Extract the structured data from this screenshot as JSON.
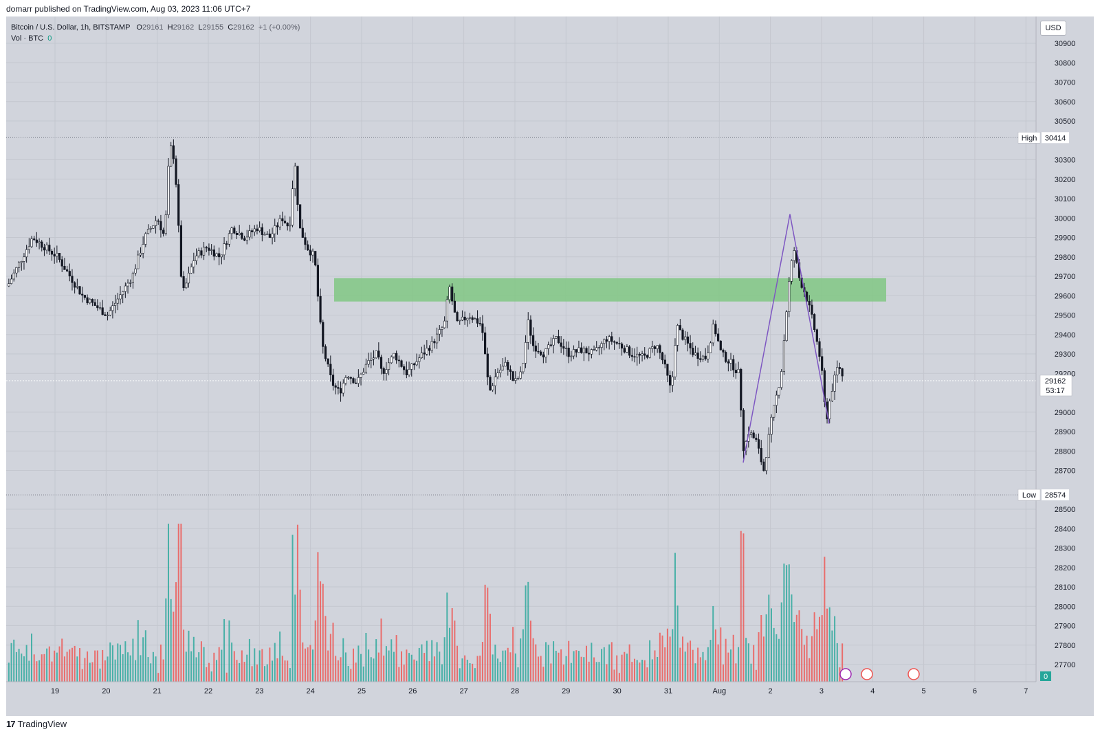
{
  "header": {
    "published_by": "domarr published on TradingView.com, Aug 03, 2023 11:06 UTC+7"
  },
  "legend": {
    "symbol": "Bitcoin / U.S. Dollar, 1h, BITSTAMP",
    "o_label": "O",
    "o_value": "29161",
    "h_label": "H",
    "h_value": "29162",
    "l_label": "L",
    "l_value": "29155",
    "c_label": "C",
    "c_value": "29162",
    "change": "+1 (+0.00%)",
    "vol_label": "Vol · BTC",
    "vol_value": "0"
  },
  "price_scale": {
    "currency": "USD",
    "high_label": "High",
    "high_value": "30414",
    "low_label": "Low",
    "low_value": "28574",
    "last_price": "29162",
    "countdown": "53:17",
    "volume_zero": "0"
  },
  "footer": {
    "brand": "TradingView",
    "brand_mark": "17"
  },
  "colors": {
    "up": "#26a69a",
    "down": "#ef5350",
    "candle": "#131722",
    "zone": "#81c784",
    "drawing": "#7e57c2",
    "background": "#d1d4dc"
  },
  "chart_data": {
    "type": "candlestick",
    "symbol": "Bitcoin / U.S. Dollar",
    "interval": "1h",
    "exchange": "BITSTAMP",
    "y_ticks": [
      30900,
      30800,
      30700,
      30600,
      30500,
      30300,
      30200,
      30100,
      30000,
      29900,
      29800,
      29700,
      29600,
      29500,
      29400,
      29300,
      29200,
      29000,
      28900,
      28800,
      28700,
      28500,
      28400,
      28300,
      28200,
      28100,
      28000,
      27900,
      27800,
      27700
    ],
    "x_ticks": [
      "19",
      "20",
      "21",
      "22",
      "23",
      "24",
      "25",
      "26",
      "27",
      "28",
      "29",
      "30",
      "31",
      "Aug",
      "2",
      "3",
      "4",
      "5",
      "6",
      "7"
    ],
    "high": 30414,
    "low": 28574,
    "last": 29162,
    "price_path": [
      [
        0,
        29650
      ],
      [
        1,
        29900
      ],
      [
        2,
        29800
      ],
      [
        3,
        29600
      ],
      [
        4,
        29500
      ],
      [
        5,
        29700
      ],
      [
        5.5,
        29900
      ],
      [
        6,
        30000
      ],
      [
        6.3,
        29900
      ],
      [
        6.5,
        30380
      ],
      [
        6.7,
        30300
      ],
      [
        7,
        29600
      ],
      [
        7.5,
        29800
      ],
      [
        8,
        29850
      ],
      [
        8.5,
        29800
      ],
      [
        9,
        29950
      ],
      [
        9.5,
        29900
      ],
      [
        10,
        29950
      ],
      [
        10.5,
        29900
      ],
      [
        11,
        30000
      ],
      [
        11.3,
        29950
      ],
      [
        11.5,
        30300
      ],
      [
        11.7,
        29950
      ],
      [
        12,
        29850
      ],
      [
        12.3,
        29800
      ],
      [
        12.6,
        29350
      ],
      [
        13,
        29150
      ],
      [
        13.3,
        29100
      ],
      [
        13.6,
        29200
      ],
      [
        14,
        29150
      ],
      [
        14.4,
        29250
      ],
      [
        14.8,
        29300
      ],
      [
        15,
        29200
      ],
      [
        15.5,
        29300
      ],
      [
        16,
        29200
      ],
      [
        16.5,
        29280
      ],
      [
        17,
        29350
      ],
      [
        17.5,
        29450
      ],
      [
        17.7,
        29650
      ],
      [
        18,
        29450
      ],
      [
        18.5,
        29500
      ],
      [
        19,
        29450
      ],
      [
        19.3,
        29100
      ],
      [
        19.6,
        29200
      ],
      [
        20,
        29250
      ],
      [
        20.3,
        29150
      ],
      [
        20.6,
        29200
      ],
      [
        20.9,
        29500
      ],
      [
        21,
        29350
      ],
      [
        21.5,
        29300
      ],
      [
        22,
        29380
      ],
      [
        22.5,
        29300
      ],
      [
        23,
        29320
      ],
      [
        23.5,
        29300
      ],
      [
        24,
        29380
      ],
      [
        24.5,
        29350
      ],
      [
        25,
        29300
      ],
      [
        25.5,
        29280
      ],
      [
        26,
        29350
      ],
      [
        26.3,
        29250
      ],
      [
        26.6,
        29100
      ],
      [
        26.8,
        29450
      ],
      [
        27,
        29400
      ],
      [
        27.5,
        29300
      ],
      [
        28,
        29280
      ],
      [
        28.3,
        29450
      ],
      [
        28.6,
        29300
      ],
      [
        29,
        29250
      ],
      [
        29.3,
        29200
      ],
      [
        29.5,
        28800
      ],
      [
        29.7,
        28900
      ],
      [
        30,
        28850
      ],
      [
        30.3,
        28700
      ],
      [
        30.6,
        28950
      ],
      [
        31,
        29200
      ],
      [
        31.3,
        29650
      ],
      [
        31.5,
        29850
      ],
      [
        31.7,
        29700
      ],
      [
        32,
        29600
      ],
      [
        32.3,
        29450
      ],
      [
        32.6,
        29250
      ],
      [
        32.8,
        28950
      ],
      [
        33,
        29100
      ],
      [
        33.3,
        29250
      ],
      [
        33.5,
        29162
      ]
    ],
    "volume_profile_note": "",
    "zone": {
      "from_index": 12.5,
      "to_index": 33.2,
      "price_low": 29570,
      "price_high": 29690
    },
    "drawing_path": [
      [
        29.6,
        28740
      ],
      [
        31.8,
        30020
      ],
      [
        33.2,
        28940
      ]
    ]
  }
}
